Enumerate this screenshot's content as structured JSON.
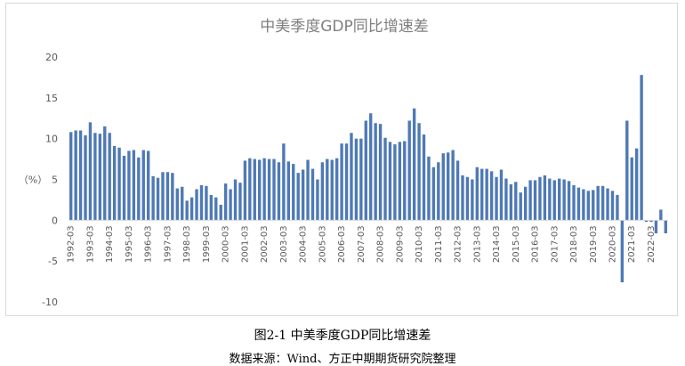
{
  "caption": {
    "figure_label": "图2-1 中美季度GDP同比增速差",
    "source": "数据来源：Wind、方正中期期货研究院整理"
  },
  "chart_data": {
    "type": "bar",
    "title": "中美季度GDP同比增速差",
    "ylabel": "（%）",
    "xlabel": "",
    "ylim": [
      -10,
      20
    ],
    "yticks": [
      -10,
      -5,
      0,
      5,
      10,
      15,
      20
    ],
    "grid": false,
    "bar_color": "#4e79b5",
    "x_tick_labels": [
      "1992-03",
      "1993-03",
      "1994-03",
      "1995-03",
      "1996-03",
      "1997-03",
      "1998-03",
      "1999-03",
      "2000-03",
      "2001-03",
      "2002-03",
      "2003-03",
      "2004-03",
      "2005-03",
      "2006-03",
      "2007-03",
      "2008-03",
      "2009-03",
      "2010-03",
      "2011-03",
      "2012-03",
      "2013-03",
      "2014-03",
      "2015-03",
      "2016-03",
      "2017-03",
      "2018-03",
      "2019-03",
      "2020-03",
      "2021-03",
      "2022-03"
    ],
    "x_tick_every": 4,
    "values": [
      10.8,
      11.0,
      11.0,
      10.4,
      12.0,
      10.7,
      10.6,
      11.5,
      10.7,
      9.1,
      8.9,
      7.9,
      8.5,
      8.6,
      7.7,
      8.6,
      8.5,
      5.4,
      5.2,
      5.9,
      5.9,
      5.8,
      3.9,
      4.1,
      2.4,
      2.8,
      3.8,
      4.3,
      4.2,
      3.1,
      2.8,
      1.9,
      4.5,
      3.8,
      5.0,
      4.6,
      7.3,
      7.6,
      7.5,
      7.4,
      7.6,
      7.5,
      7.5,
      7.1,
      9.4,
      7.2,
      6.9,
      5.8,
      6.2,
      7.4,
      6.3,
      5.0,
      7.1,
      7.5,
      7.4,
      7.6,
      9.4,
      9.4,
      10.7,
      10.0,
      10.0,
      12.2,
      13.1,
      11.9,
      11.8,
      10.1,
      9.6,
      9.3,
      9.6,
      9.7,
      12.2,
      13.7,
      11.9,
      10.5,
      7.8,
      6.5,
      7.1,
      8.2,
      8.3,
      8.6,
      7.3,
      5.5,
      5.3,
      5.0,
      6.5,
      6.3,
      6.3,
      6.0,
      5.3,
      6.2,
      5.1,
      4.4,
      4.7,
      3.4,
      4.1,
      4.9,
      4.9,
      5.3,
      5.5,
      5.1,
      4.9,
      5.1,
      5.0,
      4.8,
      4.3,
      4.0,
      3.8,
      3.6,
      3.7,
      4.2,
      4.2,
      3.9,
      3.6,
      3.1,
      -7.6,
      12.2,
      7.7,
      8.8,
      17.8,
      -0.2,
      -0.2,
      -1.6,
      1.3,
      -1.6
    ]
  }
}
